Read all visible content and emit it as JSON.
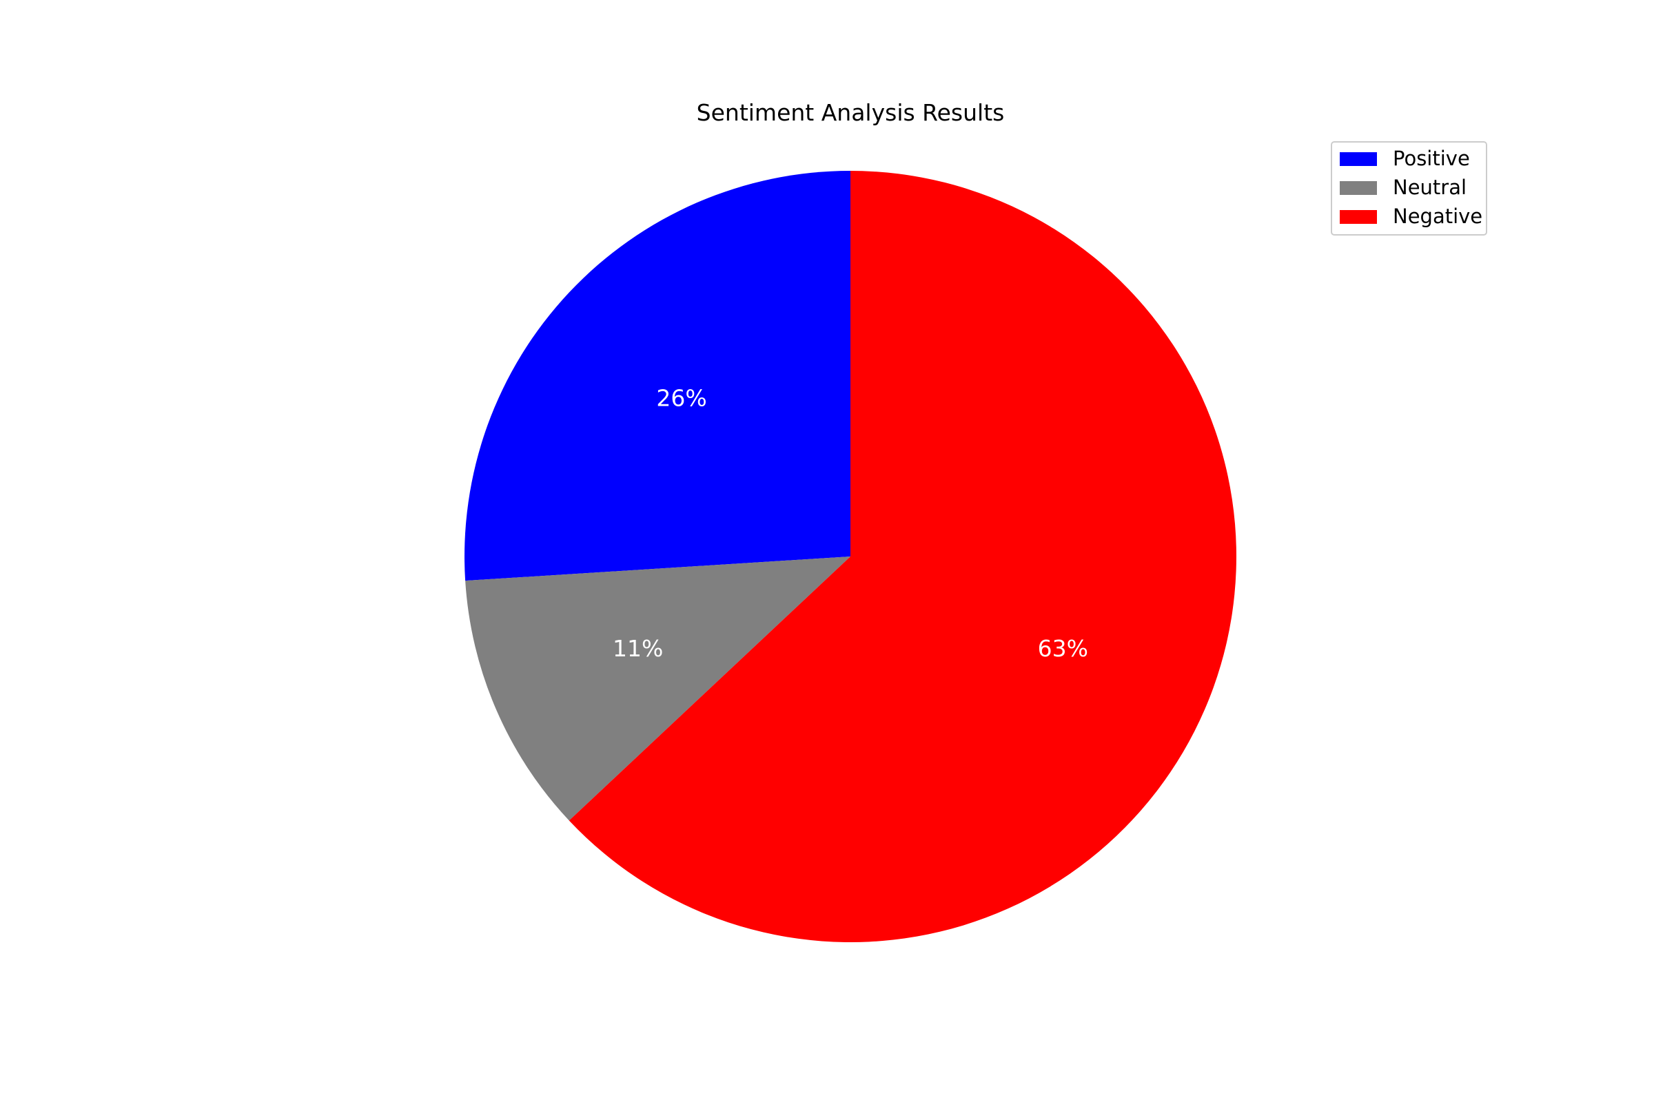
{
  "chart_data": {
    "type": "pie",
    "title": "Sentiment Analysis Results",
    "categories": [
      "Positive",
      "Neutral",
      "Negative"
    ],
    "values": [
      26,
      11,
      63
    ],
    "labels": [
      "26%",
      "11%",
      "63%"
    ],
    "colors": [
      "#0000ff",
      "#808080",
      "#ff0000"
    ],
    "start_angle_deg": 90,
    "direction": "counterclockwise",
    "legend": {
      "placement": "upper-right",
      "entries": [
        "Positive",
        "Neutral",
        "Negative"
      ]
    }
  }
}
